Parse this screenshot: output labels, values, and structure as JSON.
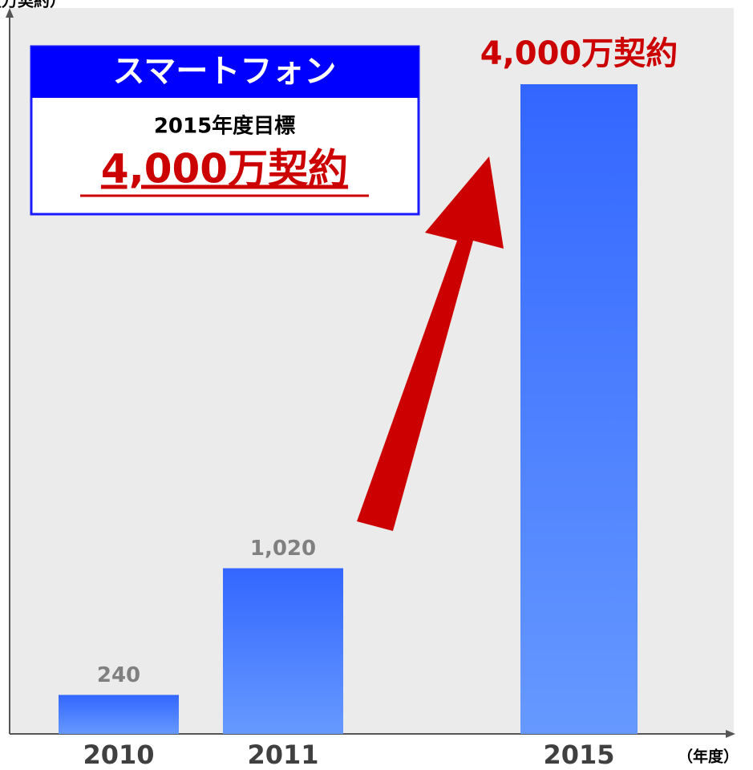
{
  "chart_data": {
    "type": "bar",
    "y_label": "（万契約）",
    "x_label": "（年度）",
    "categories": [
      "2010",
      "2011",
      "2015"
    ],
    "values": [
      240,
      1020,
      4000
    ],
    "value_labels": [
      "240",
      "1,020",
      "4,000万契約"
    ],
    "ylim": [
      0,
      4000
    ],
    "annotation": {
      "title": "スマートフォン",
      "subtitle": "2015年度目標",
      "target": "4,000万契約"
    }
  }
}
